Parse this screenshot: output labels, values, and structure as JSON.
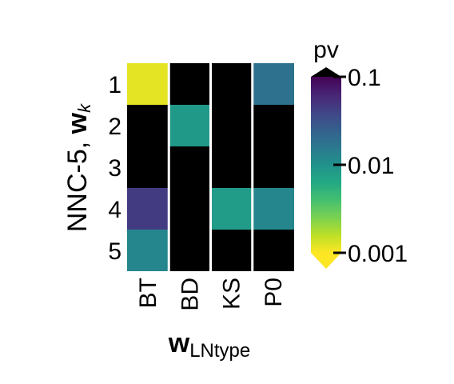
{
  "chart_data": {
    "type": "heatmap",
    "x_categories": [
      "BT",
      "BD",
      "KS",
      "P0"
    ],
    "y_categories": [
      "1",
      "2",
      "3",
      "4",
      "5"
    ],
    "ylabel_main": "NNC-5, ",
    "ylabel_bold": "w",
    "ylabel_sub": "k",
    "xlabel_bold": "w",
    "xlabel_sub": "LNtype",
    "values": [
      [
        0.0012,
        null,
        null,
        0.018
      ],
      [
        null,
        0.0085,
        null,
        null
      ],
      [
        null,
        null,
        null,
        null
      ],
      [
        0.045,
        null,
        0.008,
        0.012
      ],
      [
        0.012,
        null,
        null,
        null
      ]
    ],
    "missing_color": "#000000",
    "colorbar": {
      "title": "pv",
      "scale": "log",
      "range": [
        0.001,
        0.1
      ],
      "ticks": [
        {
          "value": 0.1,
          "label": "0.1"
        },
        {
          "value": 0.01,
          "label": "0.01"
        },
        {
          "value": 0.001,
          "label": "0.001"
        }
      ],
      "colormap": "viridis-reversed",
      "extend": "both"
    }
  }
}
